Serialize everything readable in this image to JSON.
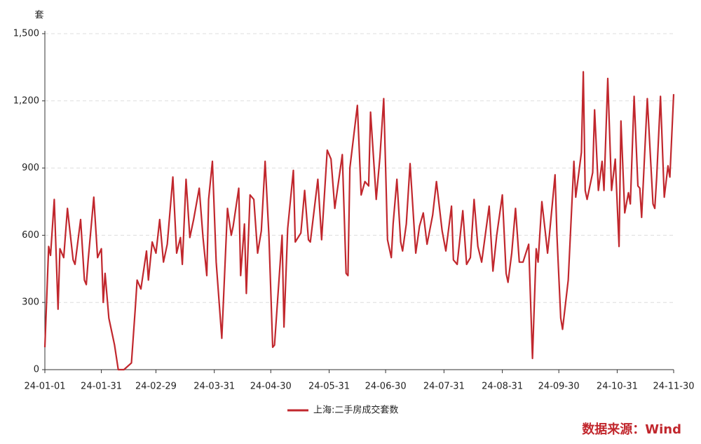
{
  "chart_data": {
    "type": "line",
    "y_unit": "套",
    "source": "数据来源：Wind",
    "x": [
      "24-01-01",
      "24-01-03",
      "24-01-04",
      "24-01-06",
      "24-01-08",
      "24-01-09",
      "24-01-11",
      "24-01-13",
      "24-01-16",
      "24-01-17",
      "24-01-20",
      "24-01-22",
      "24-01-23",
      "24-01-24",
      "24-01-27",
      "24-01-29",
      "24-01-31",
      "24-02-01",
      "24-02-02",
      "24-02-04",
      "24-02-06",
      "24-02-07",
      "24-02-09",
      "24-02-12",
      "24-02-16",
      "24-02-18",
      "24-02-19",
      "24-02-21",
      "24-02-24",
      "24-02-25",
      "24-02-27",
      "24-02-29",
      "24-03-02",
      "24-03-04",
      "24-03-06",
      "24-03-09",
      "24-03-11",
      "24-03-13",
      "24-03-14",
      "24-03-16",
      "24-03-18",
      "24-03-20",
      "24-03-23",
      "24-03-25",
      "24-03-27",
      "24-03-28",
      "24-03-30",
      "24-04-01",
      "24-04-04",
      "24-04-07",
      "24-04-09",
      "24-04-10",
      "24-04-13",
      "24-04-14",
      "24-04-16",
      "24-04-17",
      "24-04-19",
      "24-04-21",
      "24-04-23",
      "24-04-25",
      "24-04-27",
      "24-04-29",
      "24-05-01",
      "24-05-02",
      "24-05-06",
      "24-05-07",
      "24-05-09",
      "24-05-12",
      "24-05-13",
      "24-05-16",
      "24-05-18",
      "24-05-20",
      "24-05-21",
      "24-05-25",
      "24-05-27",
      "24-05-30",
      "24-06-01",
      "24-06-03",
      "24-06-07",
      "24-06-09",
      "24-06-10",
      "24-06-11",
      "24-06-15",
      "24-06-17",
      "24-06-19",
      "24-06-21",
      "24-06-22",
      "24-06-25",
      "24-06-27",
      "24-06-29",
      "24-06-30",
      "24-07-01",
      "24-07-03",
      "24-07-04",
      "24-07-06",
      "24-07-08",
      "24-07-09",
      "24-07-11",
      "24-07-13",
      "24-07-16",
      "24-07-18",
      "24-07-20",
      "24-07-22",
      "24-07-25",
      "24-07-27",
      "24-07-30",
      "24-08-01",
      "24-08-04",
      "24-08-05",
      "24-08-07",
      "24-08-10",
      "24-08-12",
      "24-08-14",
      "24-08-16",
      "24-08-18",
      "24-08-20",
      "24-08-24",
      "24-08-26",
      "24-08-28",
      "24-08-31",
      "24-09-02",
      "24-09-03",
      "24-09-05",
      "24-09-07",
      "24-09-09",
      "24-09-11",
      "24-09-14",
      "24-09-16",
      "24-09-18",
      "24-09-19",
      "24-09-21",
      "24-09-23",
      "24-09-24",
      "24-09-25",
      "24-09-28",
      "24-09-29",
      "24-10-01",
      "24-10-02",
      "24-10-05",
      "24-10-08",
      "24-10-09",
      "24-10-12",
      "24-10-13",
      "24-10-14",
      "24-10-15",
      "24-10-18",
      "24-10-19",
      "24-10-21",
      "24-10-23",
      "24-10-24",
      "24-10-26",
      "24-10-28",
      "24-10-30",
      "24-11-01",
      "24-11-02",
      "24-11-04",
      "24-11-06",
      "24-11-07",
      "24-11-09",
      "24-11-11",
      "24-11-12",
      "24-11-13",
      "24-11-16",
      "24-11-19",
      "24-11-20",
      "24-11-21",
      "24-11-23",
      "24-11-25",
      "24-11-27",
      "24-11-28",
      "24-11-30"
    ],
    "series": [
      {
        "name": "上海:二手房成交套数",
        "color": "#c1272d",
        "values": [
          100,
          550,
          510,
          760,
          270,
          540,
          500,
          720,
          490,
          470,
          670,
          400,
          380,
          490,
          770,
          500,
          540,
          300,
          430,
          230,
          150,
          110,
          0,
          0,
          30,
          270,
          400,
          360,
          530,
          400,
          570,
          520,
          670,
          480,
          560,
          860,
          520,
          590,
          470,
          850,
          590,
          670,
          810,
          590,
          420,
          760,
          930,
          480,
          140,
          720,
          600,
          640,
          810,
          420,
          650,
          340,
          780,
          760,
          520,
          620,
          930,
          600,
          100,
          110,
          600,
          190,
          630,
          890,
          570,
          610,
          800,
          580,
          570,
          850,
          580,
          980,
          940,
          720,
          960,
          430,
          420,
          900,
          1180,
          780,
          840,
          820,
          1150,
          760,
          950,
          1210,
          900,
          580,
          500,
          650,
          850,
          570,
          530,
          650,
          920,
          520,
          640,
          700,
          560,
          690,
          840,
          620,
          530,
          730,
          490,
          470,
          710,
          470,
          500,
          760,
          550,
          480,
          730,
          440,
          600,
          780,
          430,
          390,
          520,
          720,
          480,
          480,
          560,
          50,
          540,
          480,
          750,
          600,
          520,
          600,
          870,
          600,
          230,
          180,
          400,
          930,
          770,
          970,
          1330,
          800,
          760,
          880,
          1160,
          800,
          930,
          800,
          1300,
          800,
          940,
          550,
          1110,
          700,
          790,
          740,
          1220,
          820,
          810,
          680,
          1210,
          740,
          720,
          860,
          1220,
          770,
          910,
          860,
          1230
        ]
      }
    ],
    "xlim": [
      "24-01-01",
      "24-11-30"
    ],
    "xticks": [
      "24-01-01",
      "24-01-31",
      "24-02-29",
      "24-03-31",
      "24-04-30",
      "24-05-31",
      "24-06-30",
      "24-07-31",
      "24-08-31",
      "24-09-30",
      "24-10-31",
      "24-11-30"
    ],
    "ylim": [
      0,
      1500
    ],
    "yticks": [
      0,
      300,
      600,
      900,
      {
        "value": 1200,
        "label": "1,200"
      },
      {
        "value": 1500,
        "label": "1,500"
      }
    ],
    "grid": true
  }
}
